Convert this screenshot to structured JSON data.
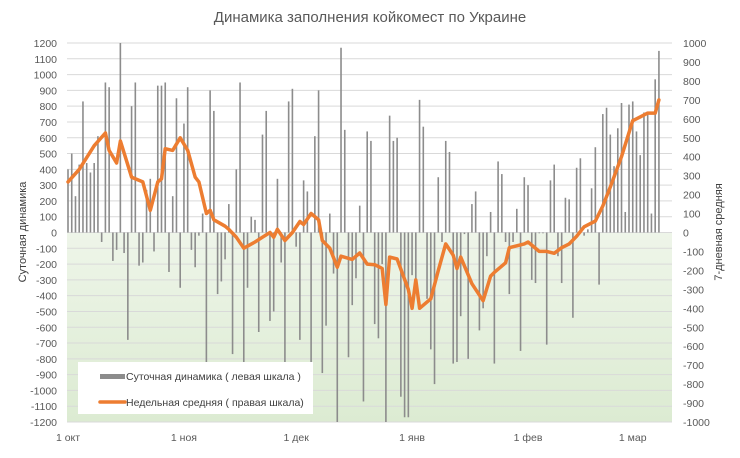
{
  "chart_data": {
    "type": "bar+line",
    "title": "Динамика заполнения койкомест по Украине",
    "ylabel_left": "Суточная динамика",
    "ylabel_right": "7-дневная средняя",
    "ylim_left": [
      -1200,
      1200
    ],
    "ylim_right": [
      -1000,
      1000
    ],
    "ytick_step": 100,
    "grid": true,
    "x_range": [
      "10-01",
      "03-08"
    ],
    "x_step": "1 day",
    "x_ticks": [
      {
        "date": "10-01",
        "label": "1 окт"
      },
      {
        "date": "11-01",
        "label": "1 ноя"
      },
      {
        "date": "12-01",
        "label": "1 дек"
      },
      {
        "date": "01-01",
        "label": "1 янв"
      },
      {
        "date": "02-01",
        "label": "1 фев"
      },
      {
        "date": "03-01",
        "label": "1 мар"
      }
    ],
    "legend_position": "bottom-left",
    "colors": {
      "bars": "#8c8c8c",
      "line": "#ed7d31",
      "negative_area": "#e2efd9"
    },
    "series": [
      {
        "name": "Суточная динамика ( левая шкала )",
        "type": "bar",
        "axis": "left",
        "values": [
          400,
          500,
          230,
          430,
          830,
          440,
          380,
          440,
          610,
          -60,
          950,
          920,
          -180,
          -110,
          1200,
          -130,
          -680,
          800,
          950,
          -210,
          -190,
          270,
          340,
          -120,
          930,
          930,
          950,
          -250,
          230,
          850,
          -350,
          690,
          920,
          -110,
          -220,
          -20,
          120,
          -820,
          900,
          770,
          -390,
          -310,
          -170,
          180,
          -770,
          400,
          950,
          -820,
          -350,
          100,
          80,
          -630,
          620,
          770,
          -560,
          -500,
          340,
          -190,
          -820,
          830,
          910,
          -90,
          -680,
          330,
          260,
          -820,
          610,
          900,
          -890,
          -590,
          120,
          -260,
          -1200,
          1170,
          650,
          -790,
          -460,
          -290,
          170,
          -1070,
          640,
          580,
          -580,
          -670,
          -200,
          -1200,
          740,
          580,
          600,
          -1040,
          -1170,
          -1170,
          -270,
          -320,
          840,
          670,
          -420,
          -740,
          -960,
          350,
          -60,
          580,
          510,
          -830,
          -820,
          -530,
          -10,
          -800,
          180,
          260,
          -620,
          -480,
          -150,
          130,
          -830,
          450,
          370,
          -60,
          -390,
          -60,
          150,
          -750,
          350,
          300,
          -300,
          -320,
          -5,
          -5,
          -710,
          330,
          430,
          -150,
          -320,
          220,
          210,
          -540,
          410,
          470,
          -20,
          20,
          280,
          540,
          -330,
          750,
          790,
          620,
          420,
          660,
          820,
          130,
          810,
          830,
          640,
          490,
          760,
          760,
          120,
          970,
          1150
        ]
      },
      {
        "name": "Недельная средняя ( правая шкала)",
        "type": "line",
        "axis": "right",
        "points": [
          [
            "10-01",
            267
          ],
          [
            "10-04",
            333
          ],
          [
            "10-08",
            458
          ],
          [
            "10-11",
            525
          ],
          [
            "10-12",
            433
          ],
          [
            "10-14",
            367
          ],
          [
            "10-15",
            483
          ],
          [
            "10-18",
            292
          ],
          [
            "10-21",
            267
          ],
          [
            "10-23",
            117
          ],
          [
            "10-25",
            267
          ],
          [
            "10-26",
            283
          ],
          [
            "10-27",
            442
          ],
          [
            "10-29",
            433
          ],
          [
            "10-31",
            500
          ],
          [
            "11-02",
            433
          ],
          [
            "11-04",
            292
          ],
          [
            "11-05",
            267
          ],
          [
            "11-07",
            100
          ],
          [
            "11-08",
            117
          ],
          [
            "11-09",
            67
          ],
          [
            "11-12",
            33
          ],
          [
            "11-13",
            17
          ],
          [
            "11-15",
            -25
          ],
          [
            "11-17",
            -83
          ],
          [
            "11-20",
            -50
          ],
          [
            "11-22",
            -25
          ],
          [
            "11-24",
            0
          ],
          [
            "11-25",
            -25
          ],
          [
            "11-26",
            17
          ],
          [
            "11-28",
            -42
          ],
          [
            "11-30",
            0
          ],
          [
            "12-02",
            58
          ],
          [
            "12-03",
            42
          ],
          [
            "12-05",
            100
          ],
          [
            "12-07",
            67
          ],
          [
            "12-08",
            -42
          ],
          [
            "12-10",
            -83
          ],
          [
            "12-12",
            -183
          ],
          [
            "12-13",
            -125
          ],
          [
            "12-16",
            -142
          ],
          [
            "12-18",
            -108
          ],
          [
            "12-20",
            -167
          ],
          [
            "12-22",
            -170
          ],
          [
            "12-24",
            -190
          ],
          [
            "12-25",
            -380
          ],
          [
            "12-26",
            -130
          ],
          [
            "12-28",
            -140
          ],
          [
            "12-31",
            -300
          ],
          [
            "01-01",
            -400
          ],
          [
            "01-02",
            -250
          ],
          [
            "01-03",
            -400
          ],
          [
            "01-06",
            -350
          ],
          [
            "01-08",
            -200
          ],
          [
            "01-10",
            -60
          ],
          [
            "01-12",
            -120
          ],
          [
            "01-13",
            -190
          ],
          [
            "01-14",
            -130
          ],
          [
            "01-17",
            -270
          ],
          [
            "01-20",
            -360
          ],
          [
            "01-22",
            -230
          ],
          [
            "01-23",
            -210
          ],
          [
            "01-26",
            -160
          ],
          [
            "01-27",
            -80
          ],
          [
            "01-31",
            -60
          ],
          [
            "02-01",
            -50
          ],
          [
            "02-04",
            -100
          ],
          [
            "02-06",
            -100
          ],
          [
            "02-08",
            -110
          ],
          [
            "02-10",
            -80
          ],
          [
            "02-12",
            -60
          ],
          [
            "02-14",
            -20
          ],
          [
            "02-16",
            30
          ],
          [
            "02-19",
            60
          ],
          [
            "02-21",
            140
          ],
          [
            "02-23",
            240
          ],
          [
            "02-26",
            400
          ],
          [
            "03-01",
            590
          ],
          [
            "03-03",
            610
          ],
          [
            "03-05",
            630
          ],
          [
            "03-07",
            630
          ],
          [
            "03-08",
            700
          ]
        ]
      }
    ]
  }
}
